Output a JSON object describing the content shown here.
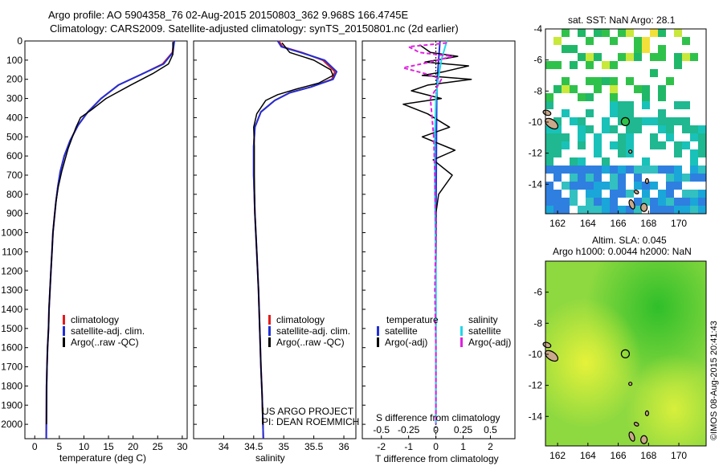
{
  "header": {
    "title_line1": "Argo profile: AO 5904358_76 02-Aug-2015 20150803_362 9.968S 166.4745E",
    "title_line2": "Climatology: CARS2009. Satellite-adjusted climatology: synTS_20150801.nc (2d earlier)"
  },
  "colors": {
    "climatology": "#e41a1c",
    "satellite": "#1f2fd6",
    "argo": "#000000",
    "sat_salinity": "#22d8e8",
    "argo_salinity": "#e020e0"
  },
  "panels": {
    "temperature": {
      "xlabel": "temperature (deg C)",
      "legend": [
        "climatology",
        "satellite-adj. clim.",
        "Argo(..raw -QC)"
      ]
    },
    "salinity": {
      "xlabel": "salinity",
      "legend": [
        "climatology",
        "satellite-adj. clim.",
        "Argo(..raw -QC)"
      ],
      "credit1": "US ARGO PROJECT",
      "credit2": "PI: DEAN ROEMMICH"
    },
    "difference": {
      "top_label": "S difference from climatology",
      "bottom_label": "T difference from climatology",
      "legend_temp_title": "temperature",
      "legend_sal_title": "salinity",
      "legend_temp": [
        "satellite",
        "Argo(-adj)"
      ],
      "legend_sal": [
        "satellite",
        "Argo(-adj)"
      ]
    },
    "map_sst": {
      "title": "sat. SST: NaN Argo: 28.1"
    },
    "map_sla": {
      "title1": "Altim. SLA: 0.045",
      "title2": "Argo h1000: 0.0044 h2000: NaN"
    },
    "footer": {
      "credit": "©IMOS 08-Aug-2015 20:41:43"
    }
  },
  "chart_data": [
    {
      "type": "line",
      "name": "temperature-profile",
      "xlabel": "temperature (deg C)",
      "ylabel": "depth (dbar)",
      "xlim": [
        -2,
        31
      ],
      "ylim": [
        2075,
        0
      ],
      "xticks": [
        0,
        5,
        10,
        15,
        20,
        25,
        30
      ],
      "yticks": [
        0,
        100,
        200,
        300,
        400,
        500,
        600,
        700,
        800,
        900,
        1000,
        1100,
        1200,
        1300,
        1400,
        1500,
        1600,
        1700,
        1800,
        1900,
        2000
      ],
      "series": [
        {
          "name": "climatology",
          "x": [
            28.3,
            28.0,
            26.0,
            22.0,
            17.0,
            13.5,
            10.8,
            8.8,
            7.2,
            6.0,
            5.2,
            4.7,
            4.3,
            4.0,
            3.7,
            3.5,
            3.3,
            3.1,
            2.9,
            2.8,
            2.6,
            2.5,
            2.4,
            2.35
          ],
          "y": [
            0,
            60,
            120,
            170,
            230,
            300,
            370,
            440,
            520,
            600,
            680,
            760,
            840,
            920,
            1000,
            1100,
            1200,
            1300,
            1400,
            1500,
            1600,
            1700,
            1800,
            2075
          ]
        },
        {
          "name": "satellite-adj. clim.",
          "x": [
            28.4,
            28.1,
            26.2,
            22.0,
            17.0,
            13.5,
            10.8,
            8.8,
            7.2,
            6.0,
            5.2,
            4.7,
            4.3,
            4.0,
            3.7,
            3.5,
            3.3,
            3.1,
            2.9,
            2.8,
            2.6,
            2.5,
            2.4,
            2.35
          ],
          "y": [
            0,
            60,
            120,
            170,
            230,
            300,
            370,
            440,
            520,
            600,
            680,
            760,
            840,
            920,
            1000,
            1100,
            1200,
            1300,
            1400,
            1500,
            1600,
            1700,
            1800,
            2075
          ]
        },
        {
          "name": "Argo(..raw -QC)",
          "x": [
            28.1,
            28.1,
            27.2,
            24.0,
            19.5,
            14.5,
            11.5,
            9.3,
            8.4,
            6.8,
            5.5,
            4.8,
            4.3,
            4.0,
            3.7,
            3.5,
            3.3,
            3.1,
            2.9,
            2.8,
            2.6,
            2.5,
            2.4
          ],
          "y": [
            5,
            70,
            120,
            170,
            230,
            300,
            360,
            400,
            450,
            560,
            680,
            760,
            840,
            920,
            1000,
            1100,
            1200,
            1300,
            1400,
            1500,
            1600,
            1700,
            2000
          ]
        }
      ]
    },
    {
      "type": "line",
      "name": "salinity-profile",
      "xlabel": "salinity",
      "xlim": [
        33.5,
        36.2
      ],
      "ylim": [
        2075,
        0
      ],
      "xticks": [
        34,
        34.5,
        35,
        35.5,
        36
      ],
      "xtick_labels": [
        "34",
        "34.5",
        "35",
        "35.5",
        "36"
      ],
      "series": [
        {
          "name": "climatology",
          "x": [
            34.92,
            34.98,
            35.3,
            35.65,
            35.85,
            35.8,
            35.45,
            35.1,
            34.85,
            34.62,
            34.52,
            34.5,
            34.5,
            34.52,
            34.55,
            34.58,
            34.6,
            34.62,
            34.64,
            34.65,
            34.66
          ],
          "y": [
            0,
            30,
            60,
            100,
            160,
            200,
            240,
            270,
            310,
            370,
            450,
            550,
            700,
            900,
            1100,
            1300,
            1500,
            1700,
            1850,
            1950,
            2075
          ]
        },
        {
          "name": "satellite-adj. clim.",
          "x": [
            34.9,
            34.96,
            35.28,
            35.68,
            35.88,
            35.82,
            35.45,
            35.1,
            34.85,
            34.62,
            34.52,
            34.5,
            34.5,
            34.52,
            34.55,
            34.58,
            34.6,
            34.62,
            34.64,
            34.65,
            34.66
          ],
          "y": [
            0,
            30,
            60,
            100,
            160,
            200,
            240,
            270,
            310,
            370,
            450,
            550,
            700,
            900,
            1100,
            1300,
            1500,
            1700,
            1850,
            1950,
            2075
          ]
        },
        {
          "name": "Argo(..raw -QC)",
          "x": [
            34.97,
            35.1,
            35.5,
            35.78,
            35.82,
            35.58,
            35.22,
            34.9,
            34.7,
            34.55,
            34.5,
            34.51,
            34.51,
            34.52,
            34.55,
            34.58,
            34.6,
            34.62,
            34.64,
            34.65
          ],
          "y": [
            10,
            60,
            100,
            150,
            180,
            220,
            250,
            280,
            310,
            380,
            450,
            550,
            700,
            900,
            1100,
            1300,
            1500,
            1700,
            1850,
            2000
          ]
        }
      ]
    },
    {
      "type": "line",
      "name": "difference-profile",
      "top_label": "S difference from climatology",
      "bottom_label": "T difference from climatology",
      "t_xlim": [
        -2.7,
        2.9
      ],
      "s_xlim": [
        -0.675,
        0.725
      ],
      "ylim": [
        2075,
        0
      ],
      "t_xticks": [
        -2,
        -1,
        0,
        1,
        2
      ],
      "s_xticks": [
        -0.5,
        -0.25,
        0,
        0.25,
        0.5
      ],
      "s_xtick_labels": [
        "-0.5",
        "-0.25",
        "0",
        "0.25",
        "0.5"
      ],
      "series": [
        {
          "name": "temperature satellite",
          "variable": "T",
          "x": [
            0.15,
            0.1,
            0.05,
            0.03,
            0.02,
            0.01,
            0.0,
            0.0,
            0.0
          ],
          "y": [
            0,
            100,
            200,
            300,
            500,
            800,
            1200,
            1600,
            2000
          ]
        },
        {
          "name": "temperature Argo(-adj)",
          "variable": "T",
          "x": [
            -0.6,
            -0.2,
            0.8,
            -0.4,
            1.2,
            0.3,
            -0.5,
            1.3,
            -0.3,
            -0.9,
            0.2,
            -1.2,
            -0.3,
            0.5,
            -0.5,
            0.7,
            -0.1,
            0.6,
            0.1,
            0.0,
            0.0
          ],
          "y": [
            20,
            60,
            80,
            110,
            130,
            160,
            180,
            200,
            230,
            260,
            300,
            330,
            380,
            450,
            500,
            570,
            620,
            700,
            800,
            900,
            1200
          ]
        },
        {
          "name": "salinity satellite",
          "variable": "S",
          "x": [
            0.1,
            0.05,
            0.02,
            0.0,
            -0.01,
            -0.01,
            0.0,
            0.0,
            0.0
          ],
          "y": [
            0,
            100,
            200,
            300,
            500,
            800,
            1200,
            1600,
            2000
          ]
        },
        {
          "name": "salinity Argo(-adj)",
          "variable": "S",
          "x": [
            0.1,
            -0.25,
            -0.15,
            0.15,
            -0.05,
            -0.3,
            -0.1,
            0.05,
            -0.05,
            -0.02,
            -0.01,
            0.0,
            -0.01,
            0.0,
            0.0,
            0.0
          ],
          "y": [
            10,
            30,
            60,
            80,
            110,
            140,
            170,
            200,
            300,
            500,
            700,
            1000,
            1300,
            1600,
            1800,
            2000
          ]
        }
      ]
    }
  ],
  "maps": {
    "map_sst": {
      "xlim": [
        161.2,
        171.8
      ],
      "ylim": [
        -15.9,
        -4
      ],
      "xticks": [
        162,
        164,
        166,
        168,
        170
      ],
      "yticks": [
        -4,
        -6,
        -8,
        -10,
        -12,
        -14
      ],
      "marker": {
        "lon": 166.47,
        "lat": -9.97
      }
    },
    "map_sla": {
      "xlim": [
        161.2,
        171.8
      ],
      "ylim": [
        -15.9,
        -4
      ],
      "xticks": [
        162,
        164,
        166,
        168,
        170
      ],
      "yticks": [
        -6,
        -8,
        -10,
        -12,
        -14
      ],
      "marker": {
        "lon": 166.47,
        "lat": -9.97
      }
    }
  }
}
